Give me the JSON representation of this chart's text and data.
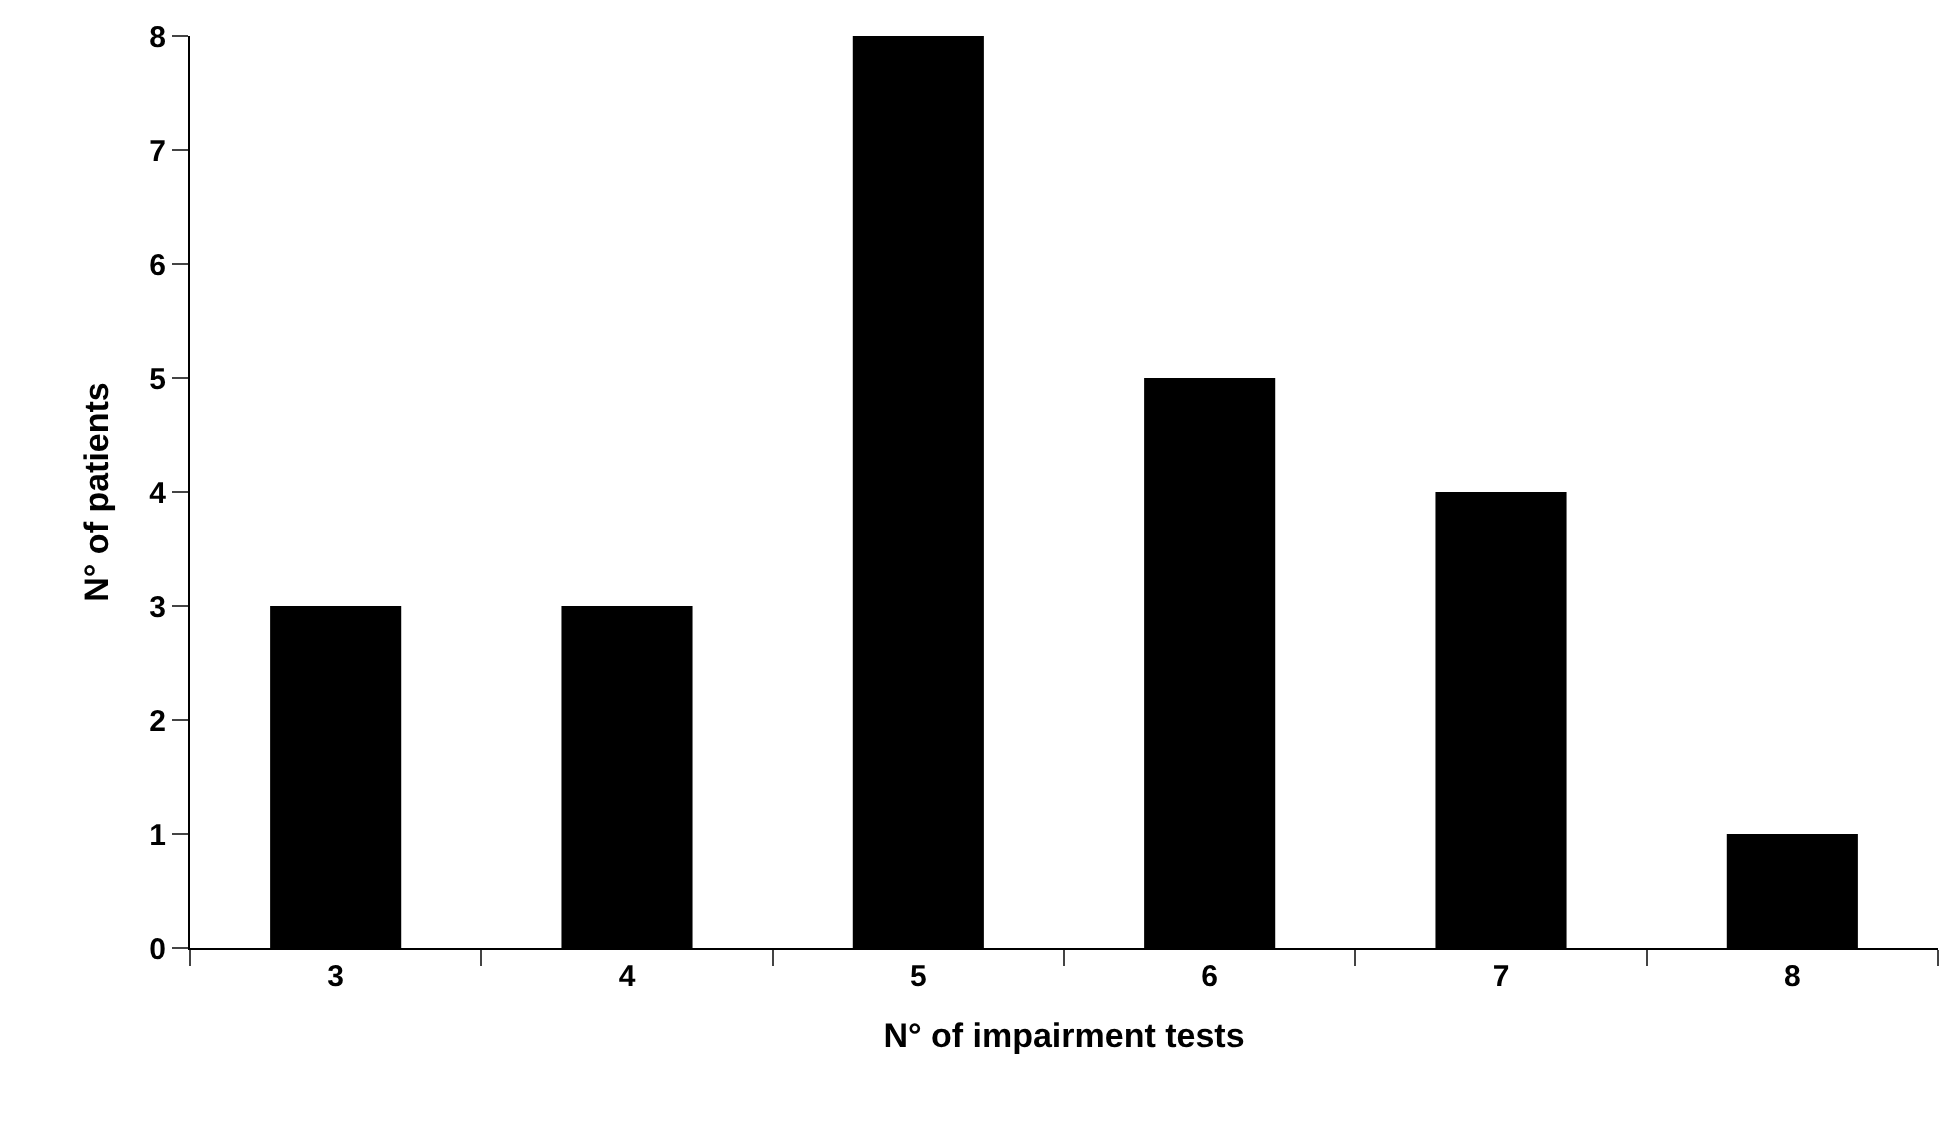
{
  "chart_data": {
    "type": "bar",
    "xlabel": "N° of impairment tests",
    "ylabel": "N° of patients",
    "categories": [
      "3",
      "4",
      "5",
      "6",
      "7",
      "8"
    ],
    "values": [
      3,
      3,
      8,
      5,
      4,
      1
    ],
    "color": "#000000",
    "ylim": [
      0,
      8
    ],
    "yticks": [
      0,
      1,
      2,
      3,
      4,
      5,
      6,
      7,
      8
    ]
  }
}
